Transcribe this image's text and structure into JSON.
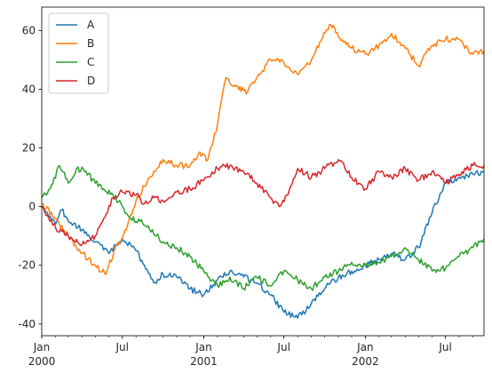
{
  "chart_data": {
    "type": "line",
    "title": "",
    "xlabel": "",
    "ylabel": "",
    "x_range": [
      "2000-01-01",
      "2002-09-26"
    ],
    "ylim": [
      -44,
      68
    ],
    "grid": false,
    "legend": {
      "placement": "top-left",
      "entries": [
        "A",
        "B",
        "C",
        "D"
      ]
    },
    "y_ticks": [
      -40,
      -20,
      0,
      20,
      40,
      60
    ],
    "x_ticks": [
      {
        "date": "2000-01-01",
        "label": "Jan",
        "sublabel": "2000"
      },
      {
        "date": "2000-07-01",
        "label": "Jul",
        "sublabel": ""
      },
      {
        "date": "2001-01-01",
        "label": "Jan",
        "sublabel": "2001"
      },
      {
        "date": "2001-07-01",
        "label": "Jul",
        "sublabel": ""
      },
      {
        "date": "2002-01-01",
        "label": "Jan",
        "sublabel": "2002"
      },
      {
        "date": "2002-07-01",
        "label": "Jul",
        "sublabel": ""
      }
    ],
    "series": [
      {
        "name": "A",
        "color": "#1f77b4",
        "points": [
          [
            "2000-01-01",
            0
          ],
          [
            "2000-02-01",
            -6
          ],
          [
            "2000-02-15",
            -1
          ],
          [
            "2000-03-01",
            -5
          ],
          [
            "2000-04-01",
            -8
          ],
          [
            "2000-05-01",
            -12
          ],
          [
            "2000-06-01",
            -16
          ],
          [
            "2000-07-01",
            -11
          ],
          [
            "2000-08-01",
            -15
          ],
          [
            "2000-08-20",
            -20
          ],
          [
            "2000-09-10",
            -26
          ],
          [
            "2000-10-01",
            -23
          ],
          [
            "2000-11-01",
            -24
          ],
          [
            "2000-12-01",
            -28
          ],
          [
            "2001-01-01",
            -30
          ],
          [
            "2001-02-01",
            -25
          ],
          [
            "2001-03-01",
            -22
          ],
          [
            "2001-04-01",
            -24
          ],
          [
            "2001-05-01",
            -26
          ],
          [
            "2001-06-01",
            -30
          ],
          [
            "2001-07-01",
            -36
          ],
          [
            "2001-08-01",
            -38
          ],
          [
            "2001-09-01",
            -33
          ],
          [
            "2001-10-01",
            -28
          ],
          [
            "2001-11-01",
            -24
          ],
          [
            "2001-12-01",
            -22
          ],
          [
            "2002-01-01",
            -20
          ],
          [
            "2002-02-01",
            -18
          ],
          [
            "2002-03-01",
            -16
          ],
          [
            "2002-04-01",
            -18
          ],
          [
            "2002-05-01",
            -14
          ],
          [
            "2002-06-01",
            -2
          ],
          [
            "2002-07-01",
            8
          ],
          [
            "2002-08-01",
            10
          ],
          [
            "2002-09-01",
            11
          ],
          [
            "2002-09-26",
            12
          ]
        ]
      },
      {
        "name": "B",
        "color": "#ff7f0e",
        "points": [
          [
            "2000-01-01",
            1
          ],
          [
            "2000-02-01",
            -4
          ],
          [
            "2000-03-01",
            -10
          ],
          [
            "2000-04-01",
            -16
          ],
          [
            "2000-05-01",
            -20
          ],
          [
            "2000-05-25",
            -23
          ],
          [
            "2000-06-15",
            -14
          ],
          [
            "2000-07-10",
            -8
          ],
          [
            "2000-08-01",
            2
          ],
          [
            "2000-08-20",
            7
          ],
          [
            "2000-09-10",
            12
          ],
          [
            "2000-10-01",
            16
          ],
          [
            "2000-11-01",
            14
          ],
          [
            "2000-12-01",
            14
          ],
          [
            "2000-12-20",
            18
          ],
          [
            "2001-01-10",
            16
          ],
          [
            "2001-02-01",
            28
          ],
          [
            "2001-02-20",
            44
          ],
          [
            "2001-03-15",
            41
          ],
          [
            "2001-04-10",
            39
          ],
          [
            "2001-05-01",
            44
          ],
          [
            "2001-06-01",
            50
          ],
          [
            "2001-07-01",
            49
          ],
          [
            "2001-08-01",
            45
          ],
          [
            "2001-09-01",
            50
          ],
          [
            "2001-09-20",
            56
          ],
          [
            "2001-10-15",
            62
          ],
          [
            "2001-11-01",
            58
          ],
          [
            "2001-12-01",
            54
          ],
          [
            "2002-01-01",
            52
          ],
          [
            "2002-02-01",
            55
          ],
          [
            "2002-03-01",
            59
          ],
          [
            "2002-04-01",
            54
          ],
          [
            "2002-05-01",
            48
          ],
          [
            "2002-06-01",
            55
          ],
          [
            "2002-07-01",
            57
          ],
          [
            "2002-08-01",
            57
          ],
          [
            "2002-09-01",
            52
          ],
          [
            "2002-09-26",
            53
          ]
        ]
      },
      {
        "name": "C",
        "color": "#2ca02c",
        "points": [
          [
            "2000-01-01",
            3
          ],
          [
            "2000-01-20",
            6
          ],
          [
            "2000-02-10",
            14
          ],
          [
            "2000-03-01",
            8
          ],
          [
            "2000-03-20",
            13
          ],
          [
            "2000-04-10",
            12
          ],
          [
            "2000-05-01",
            8
          ],
          [
            "2000-05-20",
            6
          ],
          [
            "2000-06-10",
            4
          ],
          [
            "2000-07-01",
            0
          ],
          [
            "2000-07-20",
            -4
          ],
          [
            "2000-08-10",
            -5
          ],
          [
            "2000-09-01",
            -8
          ],
          [
            "2000-10-01",
            -12
          ],
          [
            "2000-11-01",
            -14
          ],
          [
            "2000-12-01",
            -17
          ],
          [
            "2001-01-01",
            -22
          ],
          [
            "2001-02-01",
            -27
          ],
          [
            "2001-03-01",
            -24
          ],
          [
            "2001-04-01",
            -28
          ],
          [
            "2001-05-01",
            -24
          ],
          [
            "2001-06-01",
            -27
          ],
          [
            "2001-07-01",
            -22
          ],
          [
            "2001-08-01",
            -25
          ],
          [
            "2001-09-01",
            -28
          ],
          [
            "2001-10-01",
            -24
          ],
          [
            "2001-11-01",
            -22
          ],
          [
            "2001-12-01",
            -19
          ],
          [
            "2002-01-01",
            -20
          ],
          [
            "2002-02-01",
            -19
          ],
          [
            "2002-03-01",
            -17
          ],
          [
            "2002-04-01",
            -14
          ],
          [
            "2002-05-01",
            -18
          ],
          [
            "2002-06-01",
            -22
          ],
          [
            "2002-07-01",
            -21
          ],
          [
            "2002-08-01",
            -17
          ],
          [
            "2002-09-01",
            -14
          ],
          [
            "2002-09-26",
            -11
          ]
        ]
      },
      {
        "name": "D",
        "color": "#d62728",
        "points": [
          [
            "2000-01-01",
            0
          ],
          [
            "2000-02-01",
            -7
          ],
          [
            "2000-03-01",
            -10
          ],
          [
            "2000-04-01",
            -13
          ],
          [
            "2000-05-01",
            -10
          ],
          [
            "2000-05-20",
            -4
          ],
          [
            "2000-06-10",
            3
          ],
          [
            "2000-07-01",
            5
          ],
          [
            "2000-08-01",
            4
          ],
          [
            "2000-08-20",
            1
          ],
          [
            "2000-09-10",
            3
          ],
          [
            "2000-10-01",
            2
          ],
          [
            "2000-11-01",
            5
          ],
          [
            "2000-12-01",
            6
          ],
          [
            "2001-01-01",
            9
          ],
          [
            "2001-02-01",
            13
          ],
          [
            "2001-03-01",
            14
          ],
          [
            "2001-04-01",
            12
          ],
          [
            "2001-05-01",
            8
          ],
          [
            "2001-06-01",
            3
          ],
          [
            "2001-06-20",
            0
          ],
          [
            "2001-07-10",
            4
          ],
          [
            "2001-08-01",
            13
          ],
          [
            "2001-09-01",
            10
          ],
          [
            "2001-10-01",
            13
          ],
          [
            "2001-11-01",
            16
          ],
          [
            "2001-12-01",
            10
          ],
          [
            "2002-01-01",
            6
          ],
          [
            "2002-02-01",
            12
          ],
          [
            "2002-03-01",
            10
          ],
          [
            "2002-04-01",
            13
          ],
          [
            "2002-05-01",
            9
          ],
          [
            "2002-06-01",
            12
          ],
          [
            "2002-07-01",
            8
          ],
          [
            "2002-08-01",
            11
          ],
          [
            "2002-09-01",
            14
          ],
          [
            "2002-09-26",
            14
          ]
        ]
      }
    ]
  }
}
